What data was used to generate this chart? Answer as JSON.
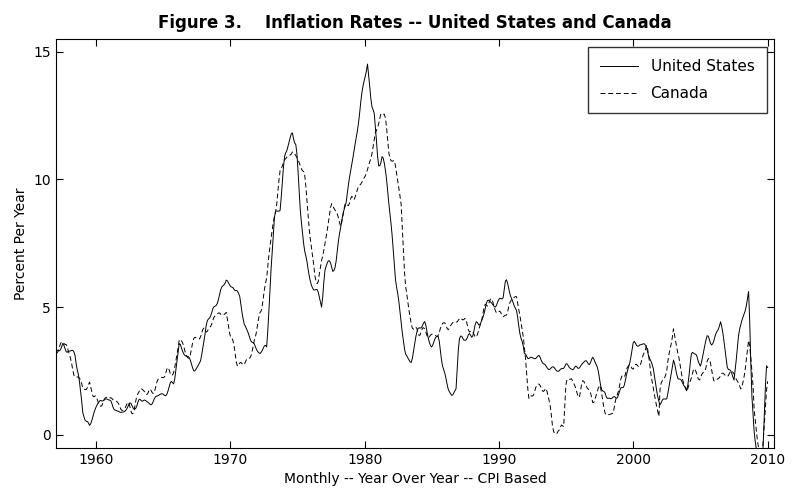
{
  "title": "Figure 3.    Inflation Rates -- United States and Canada",
  "xlabel": "Monthly -- Year Over Year -- CPI Based",
  "ylabel": "Percent Per Year",
  "xlim": [
    1957.0,
    2010.5
  ],
  "ylim": [
    -0.5,
    15.5
  ],
  "yticks": [
    0,
    5,
    10,
    15
  ],
  "ytick_labels": [
    "0",
    "5",
    "10",
    "15"
  ],
  "xticks": [
    1960,
    1970,
    1980,
    1990,
    2000,
    2010
  ],
  "us_color": "#000000",
  "canada_color": "#000000",
  "us_linestyle": "solid",
  "canada_linestyle": "dashed",
  "us_label": "United States",
  "canada_label": "Canada",
  "linewidth": 0.7,
  "background_color": "#ffffff",
  "legend_loc": "upper right",
  "title_fontsize": 12,
  "label_fontsize": 10,
  "tick_fontsize": 10,
  "legend_fontsize": 11
}
